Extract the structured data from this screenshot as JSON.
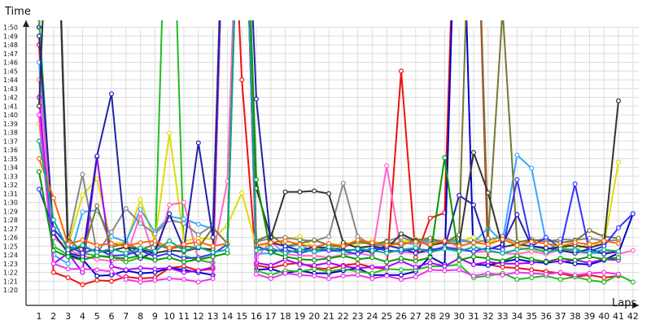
{
  "chart_data": {
    "type": "line",
    "title": "",
    "xlabel": "Laps",
    "ylabel": "Time",
    "grid": true,
    "legend": "none",
    "x": [
      1,
      2,
      3,
      4,
      5,
      6,
      7,
      8,
      9,
      10,
      11,
      12,
      13,
      14,
      15,
      16,
      17,
      18,
      19,
      20,
      21,
      22,
      23,
      24,
      25,
      26,
      27,
      28,
      29,
      30,
      31,
      32,
      33,
      34,
      35,
      36,
      37,
      38,
      39,
      40,
      41,
      42
    ],
    "x_tick_labels": [
      "1",
      "2",
      "3",
      "4",
      "5",
      "6",
      "7",
      "8",
      "9",
      "10",
      "11",
      "12",
      "13",
      "14",
      "15",
      "16",
      "17",
      "18",
      "19",
      "20",
      "21",
      "22",
      "23",
      "24",
      "25",
      "26",
      "27",
      "28",
      "29",
      "30",
      "31",
      "32",
      "33",
      "34",
      "35",
      "36",
      "37",
      "38",
      "39",
      "40",
      "41",
      "42"
    ],
    "ylim": [
      79,
      112
    ],
    "y_ticks": [
      80,
      81,
      82,
      83,
      84,
      85,
      86,
      87,
      88,
      89,
      90,
      91,
      92,
      93,
      94,
      95,
      96,
      97,
      98,
      99,
      100,
      101,
      102,
      103,
      104,
      105,
      106,
      107,
      108,
      109,
      110
    ],
    "y_tick_labels": [
      "1:20",
      "1:21",
      "1:22",
      "1:23",
      "1:24",
      "1:25",
      "1:26",
      "1:27",
      "1:28",
      "1:29",
      "1:30",
      "1:31",
      "1:32",
      "1:33",
      "1:34",
      "1:35",
      "1:36",
      "1:37",
      "1:38",
      "1:39",
      "1:40",
      "1:41",
      "1:42",
      "1:43",
      "1:44",
      "1:45",
      "1:46",
      "1:47",
      "1:48",
      "1:49",
      "1:50"
    ],
    "series": [
      {
        "color": "#ee1111",
        "values": [
          108,
          82.0,
          81.4,
          80.6,
          81.1,
          81.0,
          81.5,
          81.3,
          81.4,
          82.5,
          82.7,
          82.2,
          82.4,
          140,
          104,
          82.8,
          82.5,
          82.9,
          83.1,
          82.5,
          82.4,
          82.8,
          83.0,
          82.6,
          82.4,
          105.0,
          83.7,
          88.2,
          88.8,
          140,
          140,
          82.9,
          82.6,
          82.5,
          82.3,
          82.1,
          81.9,
          81.5,
          81.7,
          81.4,
          81.6,
          null
        ]
      },
      {
        "color": "#0000cc",
        "values": [
          110,
          140,
          84,
          83.5,
          81.6,
          81.7,
          82.2,
          81.9,
          82.0,
          82.5,
          82.3,
          82.0,
          81.7,
          140,
          140,
          82.3,
          82.4,
          81.9,
          82.2,
          81.9,
          81.9,
          82.2,
          82.5,
          81.7,
          81.7,
          81.7,
          82.1,
          83.8,
          82.9,
          140,
          82.9,
          82.8,
          83.2,
          83.5,
          83.2,
          83.1,
          83.3,
          83.0,
          82.9,
          83.4,
          84.2,
          88.7
        ]
      },
      {
        "color": "#22bb22",
        "values": [
          111,
          85,
          84.0,
          84.2,
          83.9,
          83.8,
          83.2,
          83.7,
          83.4,
          140,
          83.9,
          83.4,
          83.1,
          140,
          140,
          82.2,
          81.7,
          82.2,
          82.1,
          82.4,
          82.1,
          82.4,
          82.1,
          81.9,
          82.4,
          82.3,
          82.3,
          82.7,
          82.7,
          82.9,
          81.4,
          81.6,
          81.9,
          81.2,
          81.4,
          81.6,
          81.2,
          81.5,
          81.1,
          80.9,
          81.7,
          80.9
        ]
      },
      {
        "color": "#dddd00",
        "values": [
          99,
          86,
          85.0,
          90.8,
          92.7,
          85.3,
          85.4,
          90.3,
          85.5,
          97.9,
          85.6,
          85.9,
          85.8,
          87.4,
          91.1,
          85.0,
          85.3,
          85.7,
          86.1,
          84.8,
          84.6,
          85.4,
          85.2,
          85.6,
          85.2,
          85.5,
          85.8,
          85.4,
          85.6,
          85.5,
          86.0,
          85.3,
          86.2,
          85.0,
          84.4,
          84.6,
          84.9,
          84.6,
          85.3,
          85.1,
          94.6,
          null
        ]
      },
      {
        "color": "#33aaff",
        "values": [
          106,
          84,
          83.0,
          88.9,
          89.1,
          86.1,
          85.5,
          89.2,
          86.6,
          88.4,
          88.1,
          87.5,
          87.0,
          140,
          140,
          84.1,
          84.2,
          84.8,
          85.2,
          84.3,
          84.6,
          84.8,
          85.7,
          85.1,
          85.1,
          85.4,
          85.2,
          85.6,
          85.4,
          85.6,
          85.4,
          87.1,
          85.5,
          95.4,
          93.9,
          85.5,
          84.4,
          84.7,
          84.2,
          84.2,
          84.4,
          null
        ]
      },
      {
        "color": "#ff66cc",
        "values": [
          104,
          86,
          84.6,
          83.9,
          83.5,
          83.3,
          83.6,
          88.7,
          83.5,
          89.7,
          90.0,
          83.4,
          83.8,
          92.4,
          140,
          83.7,
          85.5,
          84.1,
          83.9,
          83.9,
          83.7,
          84.0,
          84.2,
          83.9,
          94.2,
          84.3,
          84.2,
          84.4,
          84.8,
          84.8,
          84.3,
          84.4,
          84.2,
          84.1,
          84.4,
          84.1,
          84.6,
          84.3,
          84.2,
          84.6,
          84.1,
          84.5
        ]
      },
      {
        "color": "#aa00ff",
        "values": [
          102,
          83,
          84.2,
          82.0,
          95.2,
          82.7,
          82.3,
          82.5,
          82.4,
          82.5,
          82.0,
          82.2,
          82.6,
          140,
          140,
          83.1,
          82.8,
          83.5,
          82.9,
          82.8,
          83.1,
          82.7,
          82.5,
          82.6,
          82.6,
          83.3,
          82.6,
          83.1,
          82.7,
          83.6,
          82.9,
          83.2,
          83.0,
          83.0,
          83.1,
          83.3,
          83.2,
          83.4,
          83.1,
          83.5,
          83.4,
          null
        ]
      },
      {
        "color": "#ee33ee",
        "values": [
          100,
          83,
          82.4,
          82.4,
          82.3,
          82.1,
          81.2,
          80.9,
          81.1,
          81.3,
          81.2,
          80.9,
          81.3,
          140,
          140,
          81.8,
          81.3,
          81.9,
          81.7,
          81.6,
          81.3,
          81.6,
          81.7,
          81.3,
          81.6,
          81.2,
          81.5,
          82.3,
          82.2,
          82.3,
          81.6,
          81.9,
          81.7,
          82.0,
          81.9,
          81.8,
          82.0,
          81.7,
          81.9,
          82.0,
          81.8,
          null
        ]
      },
      {
        "color": "#888888",
        "values": [
          112,
          140,
          85.5,
          93.2,
          84.2,
          86.6,
          89.3,
          87.6,
          86.4,
          88.0,
          87.6,
          86.3,
          87.4,
          140,
          140,
          85.5,
          85.9,
          86.0,
          85.7,
          85.6,
          86.1,
          92.2,
          86.1,
          85.1,
          85.6,
          86.0,
          85.5,
          85.7,
          85.6,
          85.8,
          85.4,
          85.7,
          86.1,
          85.4,
          85.8,
          85.5,
          85.8,
          85.7,
          85.9,
          85.6,
          85.7,
          null
        ]
      },
      {
        "color": "#777733",
        "values": [
          111,
          140,
          86,
          84.2,
          89.6,
          84.9,
          85.3,
          84.6,
          85.2,
          84.7,
          85.0,
          84.8,
          87.1,
          85.3,
          140,
          85.6,
          86.3,
          85.0,
          85.3,
          85.7,
          85.1,
          84.9,
          85.5,
          85.2,
          85.5,
          85.1,
          85.7,
          85.9,
          85.4,
          86.3,
          140,
          85.9,
          112,
          85.5,
          85.6,
          85.8,
          85.4,
          85.6,
          86.8,
          86.1,
          85.9,
          null
        ]
      },
      {
        "color": "#333333",
        "values": [
          101,
          140,
          84.4,
          85.0,
          84.3,
          84.5,
          84.9,
          84.6,
          84.2,
          84.5,
          84.4,
          84.8,
          84.6,
          140,
          140,
          91.6,
          86.0,
          91.2,
          91.2,
          91.3,
          91.0,
          85.4,
          84.8,
          85.0,
          84.7,
          86.4,
          85.6,
          85.1,
          85.4,
          85.2,
          95.7,
          91.1,
          84.9,
          85.2,
          85.0,
          84.7,
          84.9,
          85.1,
          84.8,
          85.3,
          101.6,
          null
        ]
      },
      {
        "color": "#2222aa",
        "values": [
          109,
          86.5,
          84.2,
          83.8,
          95.3,
          102.4,
          85.0,
          83.6,
          84.4,
          88.7,
          84.7,
          96.8,
          86.0,
          140,
          140,
          101.8,
          85.4,
          85.0,
          84.5,
          84.9,
          84.8,
          84.5,
          84.6,
          84.3,
          85.1,
          84.7,
          84.2,
          84.6,
          84.8,
          90.8,
          89.7,
          84.6,
          85.2,
          88.6,
          85.0,
          84.8,
          84.5,
          84.2,
          84.7,
          84.1,
          84.4,
          null
        ]
      },
      {
        "color": "#3333ff",
        "values": [
          91.5,
          87,
          85.0,
          84.2,
          84.7,
          83.9,
          84.0,
          84.5,
          83.8,
          84.2,
          83.6,
          83.7,
          84.1,
          85.2,
          140,
          85.0,
          84.4,
          84.6,
          84.2,
          84.6,
          84.5,
          84.4,
          84.1,
          84.8,
          84.5,
          84.4,
          84.7,
          84.5,
          84.9,
          84.6,
          84.4,
          84.8,
          84.6,
          92.6,
          85.0,
          86.0,
          84.8,
          92.1,
          84.4,
          85.0,
          87.1,
          88.7
        ]
      },
      {
        "color": "#009900",
        "values": [
          93.5,
          84.5,
          83.8,
          83.4,
          83.9,
          83.7,
          83.6,
          83.9,
          83.4,
          83.7,
          83.2,
          83.5,
          83.8,
          84.2,
          140,
          92.6,
          84.3,
          83.8,
          83.5,
          83.4,
          83.6,
          83.9,
          83.5,
          83.7,
          83.2,
          83.6,
          83.3,
          83.7,
          95.1,
          83.4,
          83.8,
          83.6,
          83.3,
          83.9,
          83.5,
          83.2,
          83.6,
          83.4,
          83.8,
          83.5,
          83.7,
          null
        ]
      },
      {
        "color": "#ff6600",
        "values": [
          95.0,
          90.5,
          85.2,
          85.7,
          85.1,
          85.3,
          85.0,
          85.4,
          85.6,
          84.8,
          85.2,
          85.5,
          85.0,
          85.3,
          140,
          85.1,
          85.4,
          85.6,
          85.2,
          84.9,
          85.3,
          85.0,
          85.7,
          85.4,
          85.1,
          85.3,
          85.5,
          85.2,
          85.6,
          85.0,
          85.4,
          85.2,
          85.8,
          85.1,
          85.5,
          85.3,
          85.0,
          85.4,
          85.2,
          85.6,
          85.3,
          null
        ]
      },
      {
        "color": "#00aa88",
        "values": [
          97.0,
          88.0,
          84.6,
          85.1,
          84.3,
          84.7,
          84.2,
          84.8,
          84.4,
          85.6,
          84.5,
          84.9,
          84.3,
          84.6,
          140,
          84.5,
          84.8,
          84.2,
          84.6,
          84.4,
          84.9,
          84.3,
          84.7,
          84.5,
          84.2,
          84.6,
          84.8,
          84.3,
          84.7,
          84.4,
          84.9,
          84.5,
          84.2,
          84.6,
          84.8,
          84.3,
          84.7,
          84.5,
          84.2,
          84.6,
          84.4,
          null
        ]
      }
    ]
  }
}
